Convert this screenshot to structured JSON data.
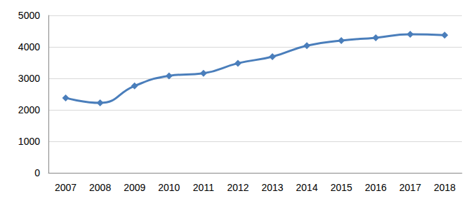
{
  "chart_data": {
    "type": "line",
    "categories": [
      "2007",
      "2008",
      "2009",
      "2010",
      "2011",
      "2012",
      "2013",
      "2014",
      "2015",
      "2016",
      "2017",
      "2018"
    ],
    "values": [
      2380,
      2220,
      2760,
      3080,
      3160,
      3480,
      3690,
      4040,
      4200,
      4290,
      4400,
      4370
    ],
    "color": "#4a7ebb",
    "marker": "diamond",
    "ylim": [
      0,
      5000
    ],
    "yticks": [
      0,
      1000,
      2000,
      3000,
      4000,
      5000
    ],
    "grid": true
  }
}
